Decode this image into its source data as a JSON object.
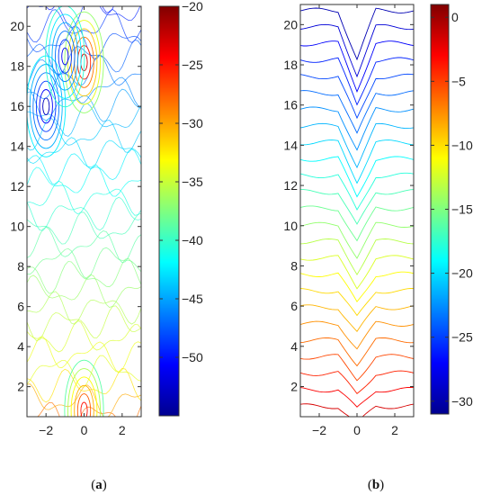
{
  "chart_data": [
    {
      "type": "contour",
      "panel_label": "(a)",
      "panel_letter": "a",
      "x_ticks": [
        -2,
        0,
        2
      ],
      "y_ticks": [
        2,
        4,
        6,
        8,
        10,
        12,
        14,
        16,
        18,
        20
      ],
      "xlim": [
        -3,
        3
      ],
      "ylim": [
        0.5,
        21
      ],
      "grid": false,
      "colorbar": {
        "ticks": [
          -20,
          -25,
          -30,
          -35,
          -40,
          -45,
          -50
        ],
        "range": [
          -55,
          -20
        ],
        "colormap": "jet"
      },
      "hotspots": [
        {
          "x": 0,
          "y": 18.2,
          "value": -20
        },
        {
          "x": 0,
          "y": 0.8,
          "value": -22
        },
        {
          "x": -2,
          "y": 16,
          "value": -55
        },
        {
          "x": -1,
          "y": 18.5,
          "value": -53
        }
      ]
    },
    {
      "type": "contour",
      "panel_label": "(b)",
      "panel_letter": "b",
      "x_ticks": [
        -2,
        0,
        2
      ],
      "y_ticks": [
        2,
        4,
        6,
        8,
        10,
        12,
        14,
        16,
        18,
        20
      ],
      "xlim": [
        -3,
        3
      ],
      "ylim": [
        0.5,
        21
      ],
      "grid": false,
      "colorbar": {
        "ticks": [
          0,
          -5,
          -10,
          -15,
          -20,
          -25,
          -30
        ],
        "range": [
          -31,
          1
        ],
        "colormap": "jet"
      }
    }
  ]
}
